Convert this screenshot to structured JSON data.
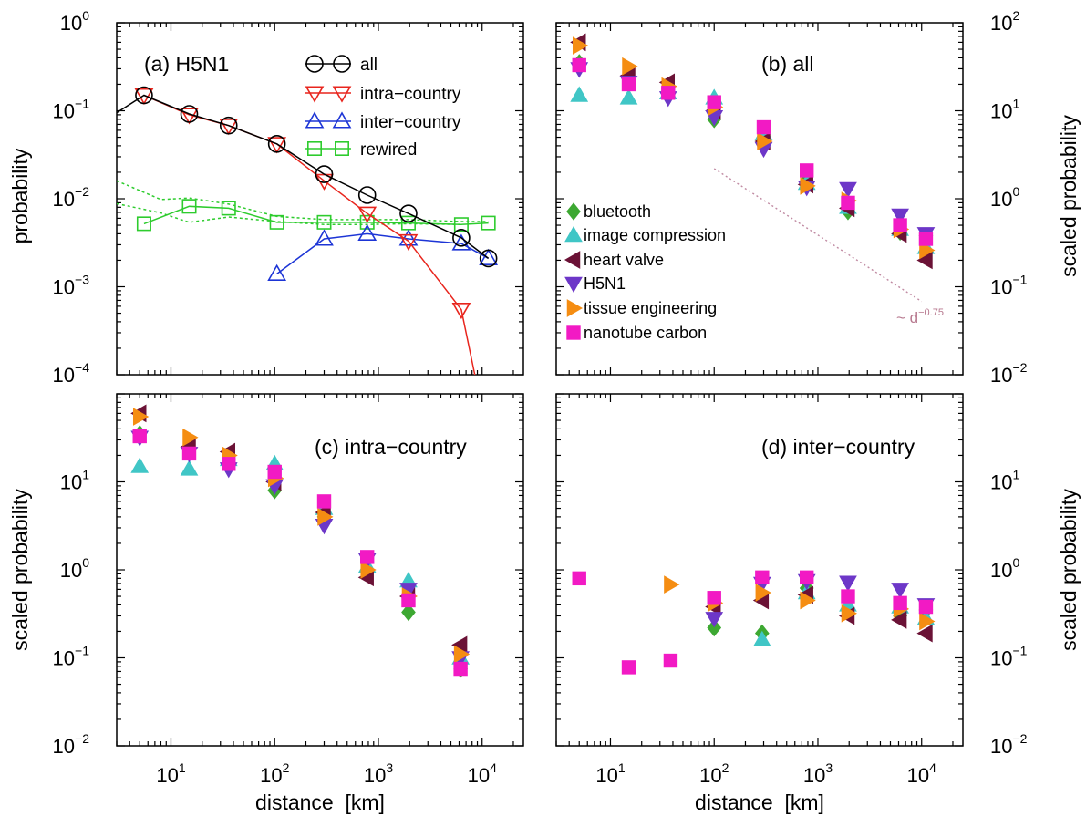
{
  "figure": {
    "legend_a_labels": [
      "all",
      "intra−country",
      "inter−country",
      "rewired"
    ],
    "legend_b_labels": [
      "bluetooth",
      "image compression",
      "heart valve",
      "H5N1",
      "tissue engineering",
      "nanotube carbon"
    ],
    "powerlaw_label": "~ d",
    "powerlaw_exponent": "−0.75",
    "ylabel_left": "probability",
    "ylabel_scaled": "scaled probability",
    "xlabel": "distance  [km]"
  },
  "chart_data": [
    {
      "panel": "a",
      "type": "line",
      "title": "(a) H5N1",
      "xlabel": "distance  [km]",
      "ylabel": "probability",
      "xscale": "log",
      "yscale": "log",
      "xlim": [
        3,
        25000
      ],
      "ylim": [
        0.0001,
        1
      ],
      "grid": false,
      "legend_position": "top-center",
      "series": [
        {
          "name": "all",
          "marker": "circle",
          "color": "#000000",
          "x": [
            5.5,
            15,
            36,
            105,
            300,
            780,
            1950,
            6300,
            11500
          ],
          "y": [
            0.15,
            0.092,
            0.068,
            0.042,
            0.019,
            0.011,
            0.0068,
            0.0036,
            0.0021
          ],
          "line_start": [
            3,
            0.095
          ]
        },
        {
          "name": "intra−country",
          "marker": "triangle-down",
          "color": "#e8251d",
          "x": [
            5.5,
            15,
            36,
            105,
            300,
            780,
            1950,
            6300
          ],
          "y": [
            0.15,
            0.09,
            0.068,
            0.042,
            0.016,
            0.0068,
            0.0033,
            0.00055
          ],
          "line_end": [
            8500,
            0.0001
          ]
        },
        {
          "name": "inter−country",
          "marker": "triangle-up",
          "color": "#1d35d6",
          "x": [
            105,
            300,
            780,
            1950,
            6300,
            11500
          ],
          "y": [
            0.0014,
            0.0035,
            0.004,
            0.0035,
            0.0031,
            0.0021
          ]
        },
        {
          "name": "rewired",
          "marker": "square",
          "color": "#2ecc2e",
          "x": [
            5.5,
            15,
            36,
            105,
            300,
            780,
            1950,
            6300,
            11500
          ],
          "y": [
            0.0052,
            0.0082,
            0.0078,
            0.0054,
            0.0054,
            0.0054,
            0.0053,
            0.0051,
            0.0053
          ]
        },
        {
          "name": "",
          "style": "dotted",
          "color": "#2ecc2e",
          "x": [
            3,
            8,
            15,
            36,
            105,
            300,
            780,
            1950,
            6300,
            11500
          ],
          "y": [
            0.016,
            0.0098,
            0.0102,
            0.0087,
            0.0063,
            0.0058,
            0.0058,
            0.0058,
            0.0055,
            0.0055
          ]
        },
        {
          "name": "",
          "style": "dotted",
          "color": "#2ecc2e",
          "x": [
            3,
            8,
            15,
            36,
            105,
            300,
            780,
            1950,
            6300
          ],
          "y": [
            0.0088,
            0.0069,
            0.0054,
            0.0062,
            0.0055,
            0.0051,
            0.0051,
            0.0052,
            0.0051
          ]
        }
      ]
    },
    {
      "panel": "b",
      "type": "scatter",
      "title": "(b) all",
      "xlabel": "",
      "ylabel": "scaled probability",
      "xscale": "log",
      "yscale": "log",
      "xlim": [
        3,
        25000
      ],
      "ylim": [
        0.01,
        100
      ],
      "grid": false,
      "legend_position": "center-left",
      "annotation": {
        "text": "~ d",
        "exponent": "−0.75",
        "line_x": [
          100,
          10000
        ],
        "line_y": [
          2.2,
          0.068
        ]
      },
      "series": [
        {
          "name": "bluetooth",
          "marker": "diamond",
          "color": "#3da832",
          "x": [
            5,
            15,
            36,
            100,
            300,
            780,
            1950,
            6200,
            11000
          ],
          "y": [
            35,
            23,
            18,
            8,
            5,
            1.6,
            0.72,
            0.42,
            0.38
          ]
        },
        {
          "name": "image compression",
          "marker": "triangle-up",
          "color": "#40c6c6",
          "x": [
            5,
            15,
            36,
            100,
            300,
            780,
            1950,
            6200,
            11000
          ],
          "y": [
            15,
            14,
            16,
            14,
            5.5,
            1.5,
            0.8,
            0.45,
            0.28
          ]
        },
        {
          "name": "heart valve",
          "marker": "triangle-left",
          "color": "#6b1236",
          "x": [
            5,
            15,
            36,
            100,
            300,
            780,
            1950,
            6200,
            11000
          ],
          "y": [
            60,
            25,
            21,
            10,
            4.5,
            1.45,
            0.78,
            0.4,
            0.2
          ]
        },
        {
          "name": "H5N1",
          "marker": "triangle-down",
          "color": "#6d37c8",
          "x": [
            5,
            15,
            36,
            100,
            300,
            780,
            1950,
            6200,
            11000
          ],
          "y": [
            30,
            21,
            14,
            8.5,
            3.7,
            1.35,
            1.3,
            0.65,
            0.4
          ]
        },
        {
          "name": "tissue engineering",
          "marker": "triangle-right",
          "color": "#f58d12",
          "x": [
            5,
            15,
            36,
            100,
            300,
            780,
            1950,
            6200,
            11000
          ],
          "y": [
            55,
            32,
            19,
            11,
            4.5,
            1.4,
            0.95,
            0.45,
            0.26
          ]
        },
        {
          "name": "nanotube carbon",
          "marker": "square",
          "color": "#f21ac4",
          "x": [
            5,
            15,
            36,
            100,
            300,
            780,
            1950,
            6200,
            11000
          ],
          "y": [
            33,
            20,
            16,
            12.5,
            6.5,
            2.1,
            0.9,
            0.5,
            0.35
          ]
        }
      ]
    },
    {
      "panel": "c",
      "type": "scatter",
      "title": "(c) intra−country",
      "xlabel": "distance  [km]",
      "ylabel": "scaled probability",
      "xscale": "log",
      "yscale": "log",
      "xlim": [
        3,
        25000
      ],
      "ylim": [
        0.01,
        100
      ],
      "grid": false,
      "series": [
        {
          "name": "bluetooth",
          "marker": "diamond",
          "color": "#3da832",
          "x": [
            5,
            15,
            36,
            100,
            300,
            780,
            1950,
            6200
          ],
          "y": [
            35,
            24,
            18,
            8,
            4,
            1.0,
            0.33,
            0.075
          ]
        },
        {
          "name": "image compression",
          "marker": "triangle-up",
          "color": "#40c6c6",
          "x": [
            5,
            15,
            36,
            100,
            300,
            780,
            1950,
            6200
          ],
          "y": [
            15,
            14,
            18,
            16,
            5,
            1.1,
            0.75,
            0.1
          ]
        },
        {
          "name": "heart valve",
          "marker": "triangle-left",
          "color": "#6b1236",
          "x": [
            5,
            15,
            36,
            100,
            300,
            780,
            1950,
            6200
          ],
          "y": [
            60,
            25,
            22,
            10,
            4.5,
            0.82,
            0.5,
            0.14
          ]
        },
        {
          "name": "H5N1",
          "marker": "triangle-down",
          "color": "#6d37c8",
          "x": [
            5,
            15,
            36,
            100,
            300,
            780,
            1950,
            6200
          ],
          "y": [
            32,
            21,
            14,
            9,
            3.2,
            1.3,
            0.6,
            0.1
          ]
        },
        {
          "name": "tissue engineering",
          "marker": "triangle-right",
          "color": "#f58d12",
          "x": [
            5,
            15,
            36,
            100,
            300,
            780,
            1950,
            6200
          ],
          "y": [
            55,
            32,
            20,
            11,
            4,
            1.0,
            0.5,
            0.11
          ]
        },
        {
          "name": "nanotube carbon",
          "marker": "square",
          "color": "#f21ac4",
          "x": [
            5,
            15,
            36,
            100,
            300,
            780,
            1950,
            6200
          ],
          "y": [
            33,
            21,
            16,
            13,
            6,
            1.4,
            0.45,
            0.075
          ]
        }
      ]
    },
    {
      "panel": "d",
      "type": "scatter",
      "title": "(d) inter−country",
      "xlabel": "distance  [km]",
      "ylabel": "scaled probability",
      "xscale": "log",
      "yscale": "log",
      "xlim": [
        3,
        25000
      ],
      "ylim": [
        0.01,
        100
      ],
      "grid": false,
      "series": [
        {
          "name": "bluetooth",
          "marker": "diamond",
          "color": "#3da832",
          "x": [
            100,
            290,
            780,
            1950,
            6200,
            11000
          ],
          "y": [
            0.22,
            0.19,
            0.62,
            0.36,
            0.3,
            0.35
          ]
        },
        {
          "name": "image compression",
          "marker": "triangle-up",
          "color": "#40c6c6",
          "x": [
            290,
            780,
            1950,
            6200,
            11000
          ],
          "y": [
            0.16,
            0.55,
            0.4,
            0.38,
            0.28
          ]
        },
        {
          "name": "heart valve",
          "marker": "triangle-left",
          "color": "#6b1236",
          "x": [
            100,
            290,
            780,
            1950,
            6200,
            11000
          ],
          "y": [
            0.38,
            0.45,
            0.52,
            0.3,
            0.27,
            0.19
          ]
        },
        {
          "name": "H5N1",
          "marker": "triangle-down",
          "color": "#6d37c8",
          "x": [
            100,
            290,
            780,
            1950,
            6200,
            11000
          ],
          "y": [
            0.28,
            0.7,
            0.75,
            0.72,
            0.6,
            0.4
          ]
        },
        {
          "name": "tissue engineering",
          "marker": "triangle-right",
          "color": "#f58d12",
          "x": [
            38,
            100,
            290,
            780,
            1950,
            6200,
            11000
          ],
          "y": [
            0.68,
            0.42,
            0.55,
            0.45,
            0.32,
            0.36,
            0.26
          ]
        },
        {
          "name": "nanotube carbon",
          "marker": "square",
          "color": "#f21ac4",
          "x": [
            5,
            15,
            38,
            100,
            290,
            780,
            1950,
            6200,
            11000
          ],
          "y": [
            0.8,
            0.078,
            0.093,
            0.48,
            0.82,
            0.82,
            0.5,
            0.42,
            0.38
          ]
        }
      ]
    }
  ]
}
